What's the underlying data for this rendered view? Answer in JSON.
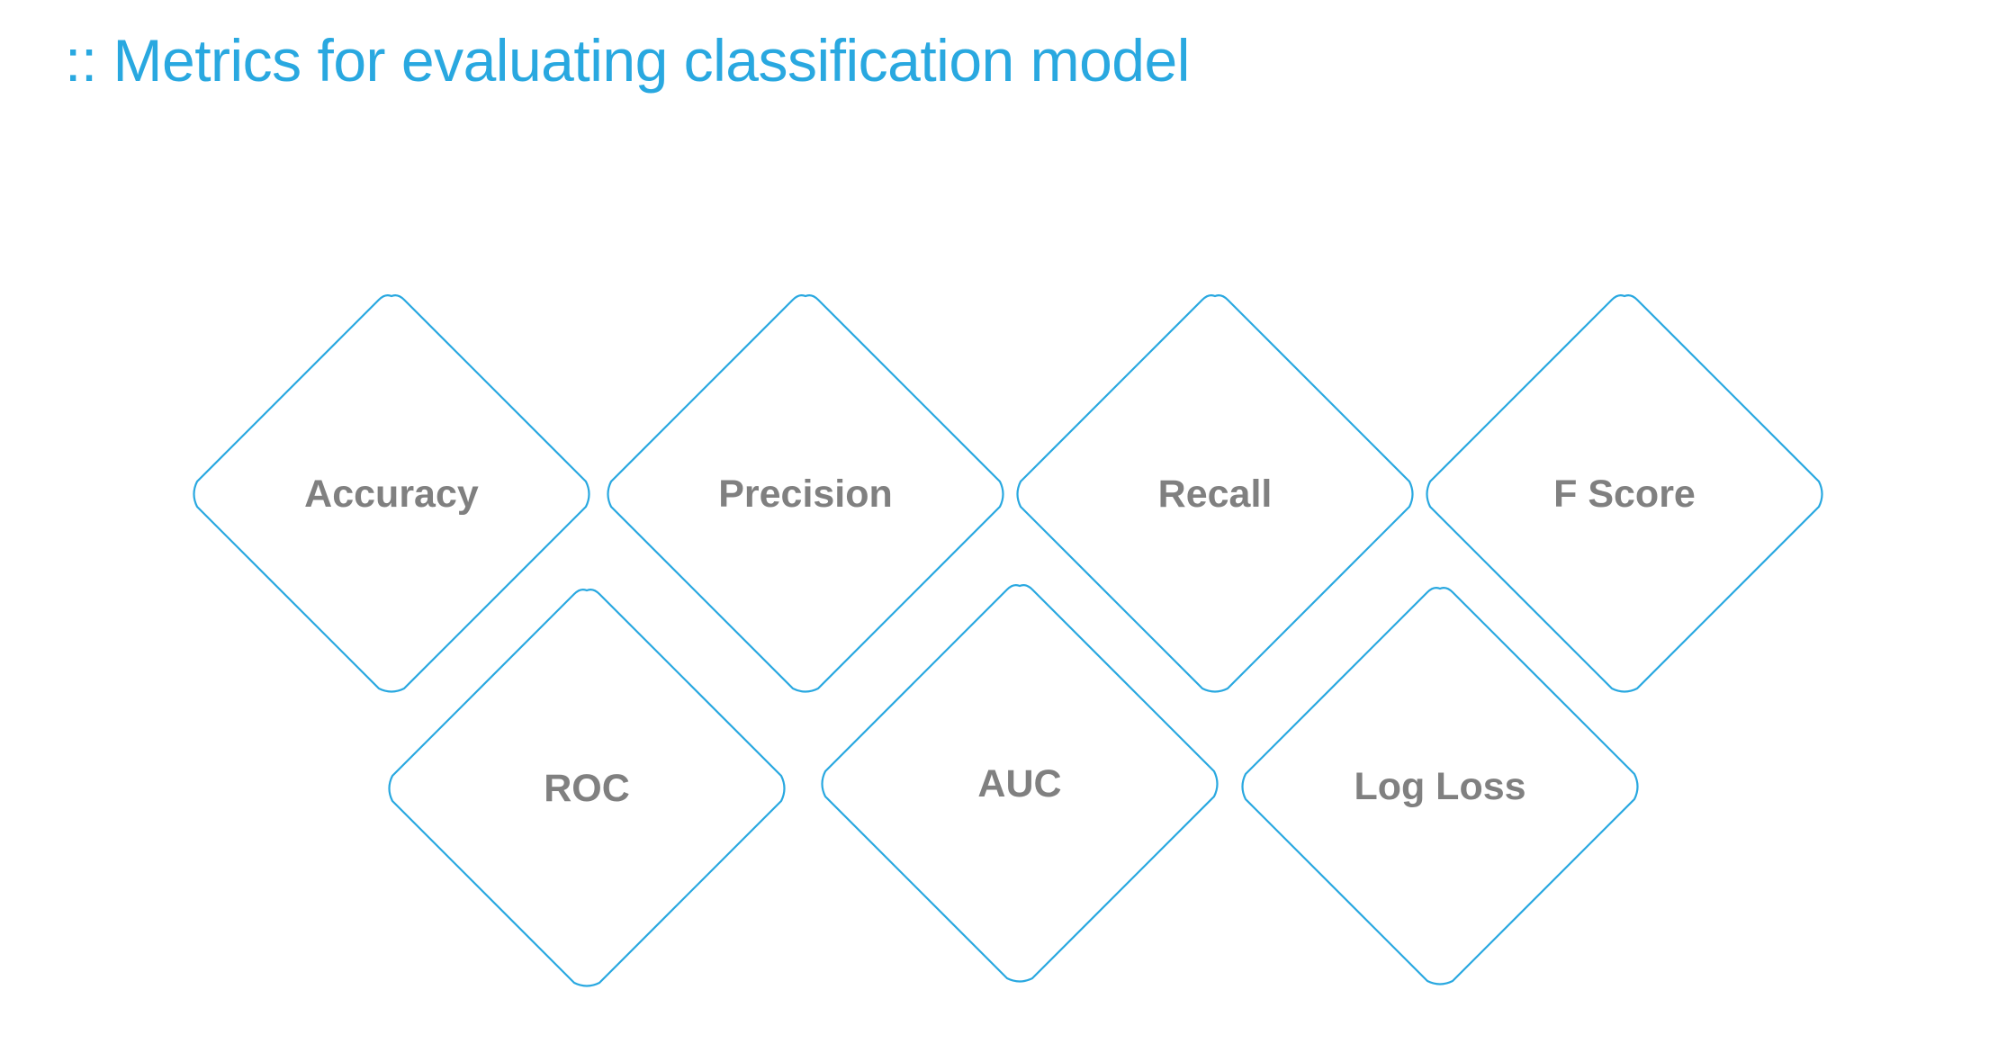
{
  "title": ":: Metrics for evaluating classification model",
  "colors": {
    "accent": "#29A8E0",
    "label": "#808080",
    "background": "#FFFFFF"
  },
  "metrics": [
    {
      "label": "Accuracy"
    },
    {
      "label": "Precision"
    },
    {
      "label": "Recall"
    },
    {
      "label": "F Score"
    },
    {
      "label": "ROC"
    },
    {
      "label": "AUC"
    },
    {
      "label": "Log Loss"
    }
  ]
}
